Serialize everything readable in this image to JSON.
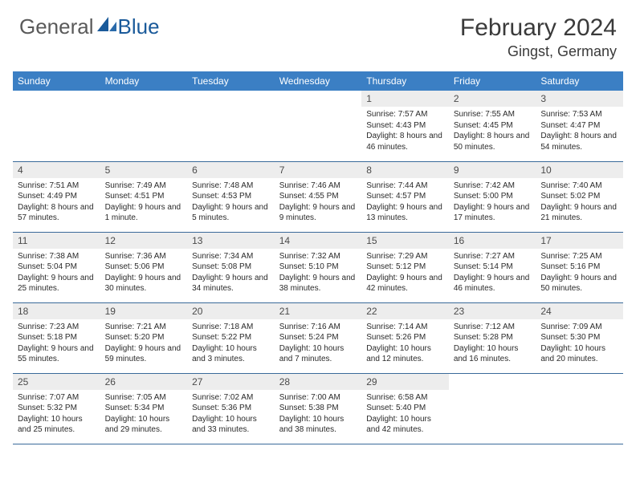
{
  "logo": {
    "general": "General",
    "blue": "Blue"
  },
  "title": "February 2024",
  "location": "Gingst, Germany",
  "colors": {
    "header_bg": "#3b7fc4",
    "header_text": "#ffffff",
    "daynum_bg": "#ededed",
    "rule": "#3a6a9a"
  },
  "day_names": [
    "Sunday",
    "Monday",
    "Tuesday",
    "Wednesday",
    "Thursday",
    "Friday",
    "Saturday"
  ],
  "weeks": [
    [
      null,
      null,
      null,
      null,
      {
        "n": "1",
        "sr": "7:57 AM",
        "ss": "4:43 PM",
        "dl": "8 hours and 46 minutes."
      },
      {
        "n": "2",
        "sr": "7:55 AM",
        "ss": "4:45 PM",
        "dl": "8 hours and 50 minutes."
      },
      {
        "n": "3",
        "sr": "7:53 AM",
        "ss": "4:47 PM",
        "dl": "8 hours and 54 minutes."
      }
    ],
    [
      {
        "n": "4",
        "sr": "7:51 AM",
        "ss": "4:49 PM",
        "dl": "8 hours and 57 minutes."
      },
      {
        "n": "5",
        "sr": "7:49 AM",
        "ss": "4:51 PM",
        "dl": "9 hours and 1 minute."
      },
      {
        "n": "6",
        "sr": "7:48 AM",
        "ss": "4:53 PM",
        "dl": "9 hours and 5 minutes."
      },
      {
        "n": "7",
        "sr": "7:46 AM",
        "ss": "4:55 PM",
        "dl": "9 hours and 9 minutes."
      },
      {
        "n": "8",
        "sr": "7:44 AM",
        "ss": "4:57 PM",
        "dl": "9 hours and 13 minutes."
      },
      {
        "n": "9",
        "sr": "7:42 AM",
        "ss": "5:00 PM",
        "dl": "9 hours and 17 minutes."
      },
      {
        "n": "10",
        "sr": "7:40 AM",
        "ss": "5:02 PM",
        "dl": "9 hours and 21 minutes."
      }
    ],
    [
      {
        "n": "11",
        "sr": "7:38 AM",
        "ss": "5:04 PM",
        "dl": "9 hours and 25 minutes."
      },
      {
        "n": "12",
        "sr": "7:36 AM",
        "ss": "5:06 PM",
        "dl": "9 hours and 30 minutes."
      },
      {
        "n": "13",
        "sr": "7:34 AM",
        "ss": "5:08 PM",
        "dl": "9 hours and 34 minutes."
      },
      {
        "n": "14",
        "sr": "7:32 AM",
        "ss": "5:10 PM",
        "dl": "9 hours and 38 minutes."
      },
      {
        "n": "15",
        "sr": "7:29 AM",
        "ss": "5:12 PM",
        "dl": "9 hours and 42 minutes."
      },
      {
        "n": "16",
        "sr": "7:27 AM",
        "ss": "5:14 PM",
        "dl": "9 hours and 46 minutes."
      },
      {
        "n": "17",
        "sr": "7:25 AM",
        "ss": "5:16 PM",
        "dl": "9 hours and 50 minutes."
      }
    ],
    [
      {
        "n": "18",
        "sr": "7:23 AM",
        "ss": "5:18 PM",
        "dl": "9 hours and 55 minutes."
      },
      {
        "n": "19",
        "sr": "7:21 AM",
        "ss": "5:20 PM",
        "dl": "9 hours and 59 minutes."
      },
      {
        "n": "20",
        "sr": "7:18 AM",
        "ss": "5:22 PM",
        "dl": "10 hours and 3 minutes."
      },
      {
        "n": "21",
        "sr": "7:16 AM",
        "ss": "5:24 PM",
        "dl": "10 hours and 7 minutes."
      },
      {
        "n": "22",
        "sr": "7:14 AM",
        "ss": "5:26 PM",
        "dl": "10 hours and 12 minutes."
      },
      {
        "n": "23",
        "sr": "7:12 AM",
        "ss": "5:28 PM",
        "dl": "10 hours and 16 minutes."
      },
      {
        "n": "24",
        "sr": "7:09 AM",
        "ss": "5:30 PM",
        "dl": "10 hours and 20 minutes."
      }
    ],
    [
      {
        "n": "25",
        "sr": "7:07 AM",
        "ss": "5:32 PM",
        "dl": "10 hours and 25 minutes."
      },
      {
        "n": "26",
        "sr": "7:05 AM",
        "ss": "5:34 PM",
        "dl": "10 hours and 29 minutes."
      },
      {
        "n": "27",
        "sr": "7:02 AM",
        "ss": "5:36 PM",
        "dl": "10 hours and 33 minutes."
      },
      {
        "n": "28",
        "sr": "7:00 AM",
        "ss": "5:38 PM",
        "dl": "10 hours and 38 minutes."
      },
      {
        "n": "29",
        "sr": "6:58 AM",
        "ss": "5:40 PM",
        "dl": "10 hours and 42 minutes."
      },
      null,
      null
    ]
  ],
  "labels": {
    "sunrise": "Sunrise:",
    "sunset": "Sunset:",
    "daylight": "Daylight:"
  }
}
